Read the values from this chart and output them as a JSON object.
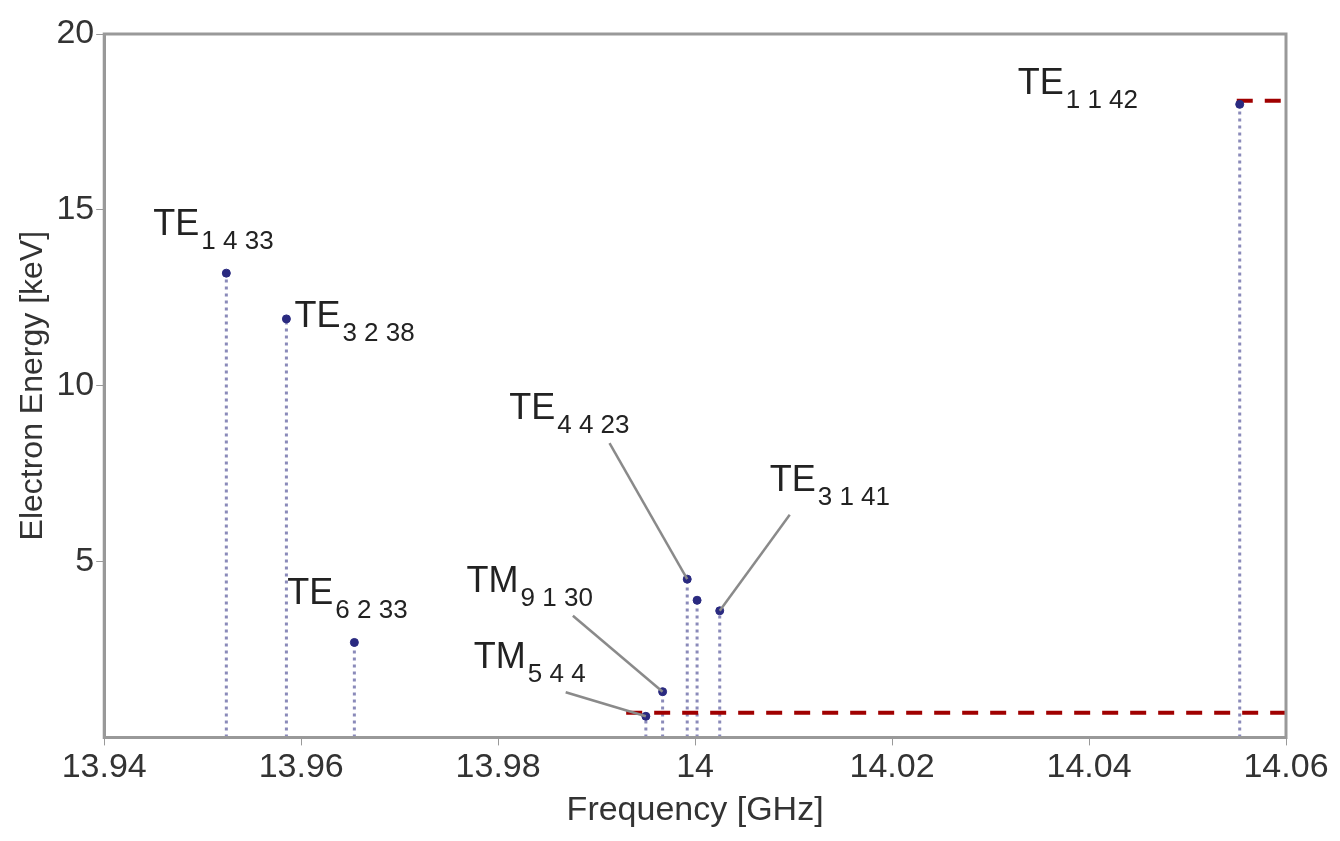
{
  "chart_data": {
    "type": "lollipop",
    "xlabel": "Frequency [GHz]",
    "ylabel": "Electron Energy [keV]",
    "xlim": [
      13.94,
      14.06
    ],
    "xticks": [
      13.94,
      13.96,
      13.98,
      14,
      14.02,
      14.04,
      14.06
    ],
    "ylim": [
      0,
      20
    ],
    "yticks": [
      5,
      10,
      15,
      20
    ],
    "grid": false,
    "legend": false,
    "series": [
      {
        "color": "#2a2a80",
        "marker": "circle",
        "line_style": "dotted",
        "x": [
          13.9524,
          13.9585,
          13.9654,
          13.995,
          13.9967,
          13.9992,
          14.0002,
          14.0025,
          14.0553
        ],
        "values": [
          13.2,
          11.9,
          2.7,
          0.6,
          1.3,
          4.5,
          3.9,
          3.6,
          18.0
        ]
      },
      {
        "type": "line",
        "color": "#a00000",
        "marker": "none",
        "line_style": "dashed",
        "x": [
          13.993,
          14.06
        ],
        "values": [
          0.7,
          0.7
        ]
      },
      {
        "type": "line",
        "color": "#a00000",
        "marker": "none",
        "line_style": "dashed",
        "x": [
          14.055,
          14.06
        ],
        "values": [
          18.1,
          18.1
        ]
      }
    ],
    "annotations": [
      {
        "text": "TE$_{1 4 33}$",
        "x": 13.9524,
        "y": 13.2
      },
      {
        "text": "TE$_{3 2 38}$",
        "x": 13.9585,
        "y": 11.9
      },
      {
        "text": "TE$_{6 2 33}$",
        "x": 13.9654,
        "y": 2.7
      },
      {
        "text": "TM$_{5 4 4}$",
        "x": 13.995,
        "y": 0.6
      },
      {
        "text": "TM$_{9 1 30}$",
        "x": 13.9967,
        "y": 1.3
      },
      {
        "text": "TE$_{4 4 23}$",
        "x": 13.9992,
        "y": 4.5
      },
      {
        "text": "TE$_{3 1 41}$",
        "x": 14.0025,
        "y": 3.6
      },
      {
        "text": "TE$_{1 1 42}$",
        "x": 14.0553,
        "y": 18.0
      }
    ]
  }
}
